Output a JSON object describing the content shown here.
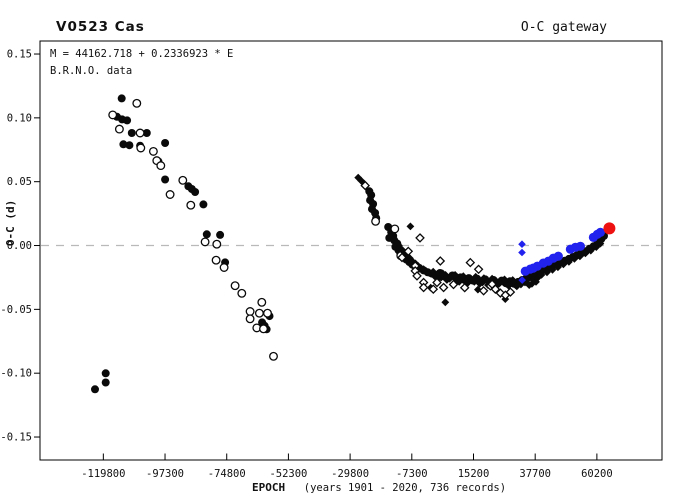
{
  "header": {
    "title": "V0523 Cas",
    "gateway_label": "O-C gateway"
  },
  "annotations": {
    "ephemeris": "M = 44162.718 + 0.2336923 * E",
    "dataset_label": "B.R.N.O. data"
  },
  "colors": {
    "title_blue": "#0000cc",
    "annotation_blue": "#0000cc",
    "text_black": "#1a1a1a",
    "axis_black": "#000000",
    "zero_dash_gray": "#b9b9b9",
    "point_black": "#0a0a0a",
    "point_blue": "#2222ee",
    "point_red": "#ee1111",
    "background": "#ffffff"
  },
  "chart_data": {
    "type": "scatter",
    "title": "V0523 Cas",
    "xlabel": "EPOCH",
    "xlabel_note": "(years 1901 - 2020, 736 records)",
    "ylabel": "O-C (d)",
    "xlim": [
      -142900,
      83950
    ],
    "ylim": [
      -0.168,
      0.1602
    ],
    "x_ticks": [
      -119800,
      -97300,
      -74800,
      -52300,
      -29800,
      -7300,
      15200,
      37700,
      60200
    ],
    "y_ticks": [
      0.15,
      0.1,
      0.05,
      0.0,
      -0.05,
      -0.1,
      -0.15
    ],
    "y_tick_labels": [
      "0.15",
      "0.10",
      "0.05",
      "0.00",
      "-0.05",
      "-0.10",
      "-0.15"
    ],
    "zero_line": 0.0,
    "grid": false,
    "legend_position": "none",
    "series": [
      {
        "name": "black-filled-circles",
        "marker": "circle",
        "fill": "#0a0a0a",
        "size": 4.0,
        "points": [
          [
            -113085,
            0.1152
          ],
          [
            -114800,
            0.1008
          ],
          [
            -112975,
            0.0988
          ],
          [
            -111150,
            0.098
          ],
          [
            -109435,
            0.0881
          ],
          [
            -103960,
            0.0881
          ],
          [
            -112500,
            0.0793
          ],
          [
            -110310,
            0.0786
          ],
          [
            -106400,
            0.0782
          ],
          [
            -97280,
            0.0803
          ],
          [
            -99725,
            0.0659
          ],
          [
            -97280,
            0.0517
          ],
          [
            -88775,
            0.0464
          ],
          [
            -87535,
            0.0443
          ],
          [
            -86330,
            0.0419
          ],
          [
            -83300,
            0.0322
          ],
          [
            -82060,
            0.0088
          ],
          [
            -77210,
            0.0083
          ],
          [
            -75385,
            -0.0132
          ],
          [
            -59215,
            -0.0553
          ],
          [
            -61880,
            -0.0602
          ],
          [
            -60970,
            -0.0629
          ],
          [
            -60240,
            -0.0656
          ],
          [
            -118925,
            -0.1001
          ],
          [
            -118925,
            -0.1073
          ],
          [
            -122830,
            -0.1126
          ],
          [
            -22800,
            0.0425
          ],
          [
            -22100,
            0.0395
          ],
          [
            -22500,
            0.0355
          ],
          [
            -21400,
            0.0325
          ],
          [
            -21800,
            0.0285
          ],
          [
            -20700,
            0.0255
          ],
          [
            -20300,
            0.0215
          ],
          [
            -15900,
            0.0145
          ],
          [
            -14400,
            0.0125
          ],
          [
            -14800,
            0.0105
          ],
          [
            -14100,
            0.0075
          ],
          [
            -15500,
            0.006
          ],
          [
            -13700,
            0.004
          ],
          [
            -12600,
            0.0015
          ],
          [
            -13300,
            -0.001
          ],
          [
            -12200,
            -0.0035
          ],
          [
            -11500,
            -0.006
          ],
          [
            -10400,
            -0.0085
          ],
          [
            -9300,
            -0.011
          ],
          [
            -8200,
            -0.013
          ],
          [
            -7100,
            -0.015
          ],
          [
            -6000,
            -0.0165
          ],
          [
            -4500,
            -0.018
          ],
          [
            -3000,
            -0.0195
          ],
          [
            -1500,
            -0.021
          ],
          [
            0,
            -0.022
          ],
          [
            1500,
            -0.023
          ],
          [
            3000,
            -0.0215
          ],
          [
            4500,
            -0.024
          ],
          [
            6000,
            -0.0255
          ],
          [
            7500,
            -0.0235
          ],
          [
            9000,
            -0.0265
          ],
          [
            10500,
            -0.025
          ],
          [
            12000,
            -0.027
          ],
          [
            13500,
            -0.0255
          ],
          [
            15000,
            -0.0275
          ],
          [
            16500,
            -0.026
          ],
          [
            18000,
            -0.028
          ],
          [
            19500,
            -0.0265
          ],
          [
            21000,
            -0.0285
          ],
          [
            22500,
            -0.027
          ],
          [
            24000,
            -0.029
          ],
          [
            25500,
            -0.0275
          ],
          [
            27000,
            -0.0295
          ],
          [
            28500,
            -0.028
          ],
          [
            30000,
            -0.03
          ],
          [
            31500,
            -0.0285
          ],
          [
            33000,
            -0.027
          ],
          [
            34500,
            -0.0255
          ],
          [
            36000,
            -0.024
          ],
          [
            37500,
            -0.0225
          ],
          [
            39500,
            -0.0205
          ],
          [
            41000,
            -0.019
          ],
          [
            42500,
            -0.0175
          ],
          [
            44000,
            -0.016
          ],
          [
            45500,
            -0.015
          ],
          [
            47000,
            -0.0135
          ],
          [
            48500,
            -0.012
          ],
          [
            50000,
            -0.0105
          ],
          [
            51500,
            -0.009
          ],
          [
            53000,
            -0.0075
          ],
          [
            54500,
            -0.006
          ],
          [
            56000,
            -0.0045
          ],
          [
            57500,
            -0.0025
          ],
          [
            59000,
            -0.0005
          ],
          [
            60500,
            0.002
          ],
          [
            61800,
            0.005
          ],
          [
            62800,
            0.0075
          ]
        ]
      },
      {
        "name": "black-open-circles",
        "marker": "circle-open",
        "stroke": "#0a0a0a",
        "fill": "#ffffff",
        "size": 3.8,
        "points": [
          [
            -107610,
            0.1114
          ],
          [
            -116370,
            0.1023
          ],
          [
            -113960,
            0.0912
          ],
          [
            -106400,
            0.0881
          ],
          [
            -106150,
            0.0764
          ],
          [
            -101550,
            0.0737
          ],
          [
            -100310,
            0.0665
          ],
          [
            -98850,
            0.0626
          ],
          [
            -90820,
            0.0511
          ],
          [
            -95455,
            0.04
          ],
          [
            -87900,
            0.0316
          ],
          [
            -82680,
            0.0028
          ],
          [
            -78415,
            0.001
          ],
          [
            -78670,
            -0.0115
          ],
          [
            -75750,
            -0.0172
          ],
          [
            -71735,
            -0.0315
          ],
          [
            -69290,
            -0.0374
          ],
          [
            -61990,
            -0.0445
          ],
          [
            -66260,
            -0.0517
          ],
          [
            -62865,
            -0.053
          ],
          [
            -59945,
            -0.053
          ],
          [
            -66260,
            -0.0574
          ],
          [
            -63815,
            -0.0645
          ],
          [
            -61405,
            -0.0652
          ],
          [
            -57755,
            -0.0868
          ],
          [
            -20500,
            0.019
          ],
          [
            -13500,
            0.013
          ],
          [
            -11300,
            -0.008
          ]
        ]
      },
      {
        "name": "black-filled-diamonds",
        "marker": "diamond",
        "fill": "#0a0a0a",
        "size": 3.3,
        "points": [
          [
            -26850,
            0.0532
          ],
          [
            -25755,
            0.0508
          ],
          [
            -24660,
            0.0485
          ],
          [
            -7800,
            0.015
          ],
          [
            -12000,
            0.0
          ],
          [
            -11000,
            -0.003
          ],
          [
            -10000,
            -0.0055
          ],
          [
            -9000,
            -0.008
          ],
          [
            -8000,
            -0.01
          ],
          [
            -7000,
            -0.0125
          ],
          [
            -6000,
            -0.014
          ],
          [
            -5000,
            -0.016
          ],
          [
            -4000,
            -0.0175
          ],
          [
            -3000,
            -0.0185
          ],
          [
            -2000,
            -0.02
          ],
          [
            -1000,
            -0.0215
          ],
          [
            500,
            -0.0205
          ],
          [
            2000,
            -0.0225
          ],
          [
            3500,
            -0.025
          ],
          [
            5000,
            -0.023
          ],
          [
            6500,
            -0.026
          ],
          [
            8000,
            -0.0245
          ],
          [
            9500,
            -0.027
          ],
          [
            11000,
            -0.0255
          ],
          [
            12500,
            -0.028
          ],
          [
            14000,
            -0.026
          ],
          [
            15500,
            -0.0285
          ],
          [
            17000,
            -0.0265
          ],
          [
            18500,
            -0.029
          ],
          [
            20000,
            -0.027
          ],
          [
            21500,
            -0.0295
          ],
          [
            23000,
            -0.0275
          ],
          [
            24500,
            -0.03
          ],
          [
            26000,
            -0.0285
          ],
          [
            27500,
            -0.0305
          ],
          [
            29000,
            -0.029
          ],
          [
            30500,
            -0.031
          ],
          [
            32000,
            -0.0295
          ],
          [
            33500,
            -0.028
          ],
          [
            35000,
            -0.0265
          ],
          [
            36500,
            -0.03
          ],
          [
            38000,
            -0.0285
          ],
          [
            1000,
            -0.024
          ],
          [
            2500,
            -0.026
          ],
          [
            4000,
            -0.0218
          ],
          [
            5500,
            -0.027
          ],
          [
            7000,
            -0.0248
          ],
          [
            8500,
            -0.023
          ],
          [
            10000,
            -0.0285
          ],
          [
            11500,
            -0.024
          ],
          [
            13000,
            -0.0295
          ],
          [
            14500,
            -0.027
          ],
          [
            16000,
            -0.0245
          ],
          [
            17500,
            -0.03
          ],
          [
            19000,
            -0.0255
          ],
          [
            20500,
            -0.031
          ],
          [
            22000,
            -0.026
          ],
          [
            23500,
            -0.0315
          ],
          [
            25000,
            -0.029
          ],
          [
            26500,
            -0.0265
          ],
          [
            28000,
            -0.0315
          ],
          [
            29500,
            -0.027
          ],
          [
            31000,
            -0.032
          ],
          [
            32500,
            -0.0305
          ],
          [
            34000,
            -0.029
          ],
          [
            35500,
            -0.031
          ],
          [
            37000,
            -0.027
          ],
          [
            38500,
            -0.0255
          ],
          [
            40000,
            -0.023
          ],
          [
            42000,
            -0.021
          ],
          [
            44000,
            -0.019
          ],
          [
            46000,
            -0.017
          ],
          [
            48000,
            -0.0148
          ],
          [
            50000,
            -0.0128
          ],
          [
            52000,
            -0.0105
          ],
          [
            54000,
            -0.0085
          ],
          [
            56000,
            -0.0062
          ],
          [
            58000,
            -0.004
          ],
          [
            60000,
            -0.0012
          ],
          [
            61500,
            0.0015
          ],
          [
            4900,
            -0.0445
          ],
          [
            26800,
            -0.042
          ],
          [
            -400,
            -0.033
          ],
          [
            16800,
            -0.0345
          ]
        ]
      },
      {
        "name": "black-open-diamonds",
        "marker": "diamond-open",
        "stroke": "#0a0a0a",
        "fill": "#ffffff",
        "size": 3.3,
        "points": [
          [
            -24295,
            0.0469
          ],
          [
            -4300,
            0.006
          ],
          [
            -10870,
            -0.0094
          ],
          [
            -8560,
            -0.0045
          ],
          [
            -6050,
            -0.016
          ],
          [
            -6050,
            -0.0199
          ],
          [
            -5400,
            -0.0238
          ],
          [
            -3000,
            -0.029
          ],
          [
            -3000,
            -0.0329
          ],
          [
            550,
            -0.0342
          ],
          [
            1900,
            -0.029
          ],
          [
            3100,
            -0.0121
          ],
          [
            4300,
            -0.0329
          ],
          [
            14050,
            -0.0134
          ],
          [
            17080,
            -0.0186
          ],
          [
            18900,
            -0.0355
          ],
          [
            21350,
            -0.0316
          ],
          [
            21970,
            -0.0303
          ],
          [
            23175,
            -0.0342
          ],
          [
            25000,
            -0.0373
          ],
          [
            26825,
            -0.0389
          ],
          [
            28650,
            -0.0365
          ],
          [
            7900,
            -0.0305
          ],
          [
            12000,
            -0.033
          ]
        ]
      },
      {
        "name": "blue-filled-circles",
        "marker": "circle",
        "fill": "#2222ee",
        "size": 4.6,
        "points": [
          [
            34100,
            -0.0201
          ],
          [
            35925,
            -0.0185
          ],
          [
            37020,
            -0.0177
          ],
          [
            38480,
            -0.0162
          ],
          [
            40670,
            -0.0138
          ],
          [
            42495,
            -0.0123
          ],
          [
            44320,
            -0.0099
          ],
          [
            46145,
            -0.0084
          ],
          [
            50525,
            -0.0029
          ],
          [
            52350,
            -0.0014
          ],
          [
            54175,
            -0.0006
          ],
          [
            58920,
            0.0064
          ],
          [
            60380,
            0.0088
          ],
          [
            61475,
            0.0103
          ]
        ]
      },
      {
        "name": "blue-filled-diamonds",
        "marker": "diamond",
        "fill": "#2222ee",
        "size": 3.2,
        "points": [
          [
            32900,
            0.001
          ],
          [
            32900,
            -0.0055
          ],
          [
            32950,
            -0.0271
          ]
        ]
      },
      {
        "name": "red-filled-circle",
        "marker": "circle",
        "fill": "#ee1111",
        "size": 6.0,
        "points": [
          [
            64760,
            0.0134
          ]
        ]
      }
    ]
  }
}
